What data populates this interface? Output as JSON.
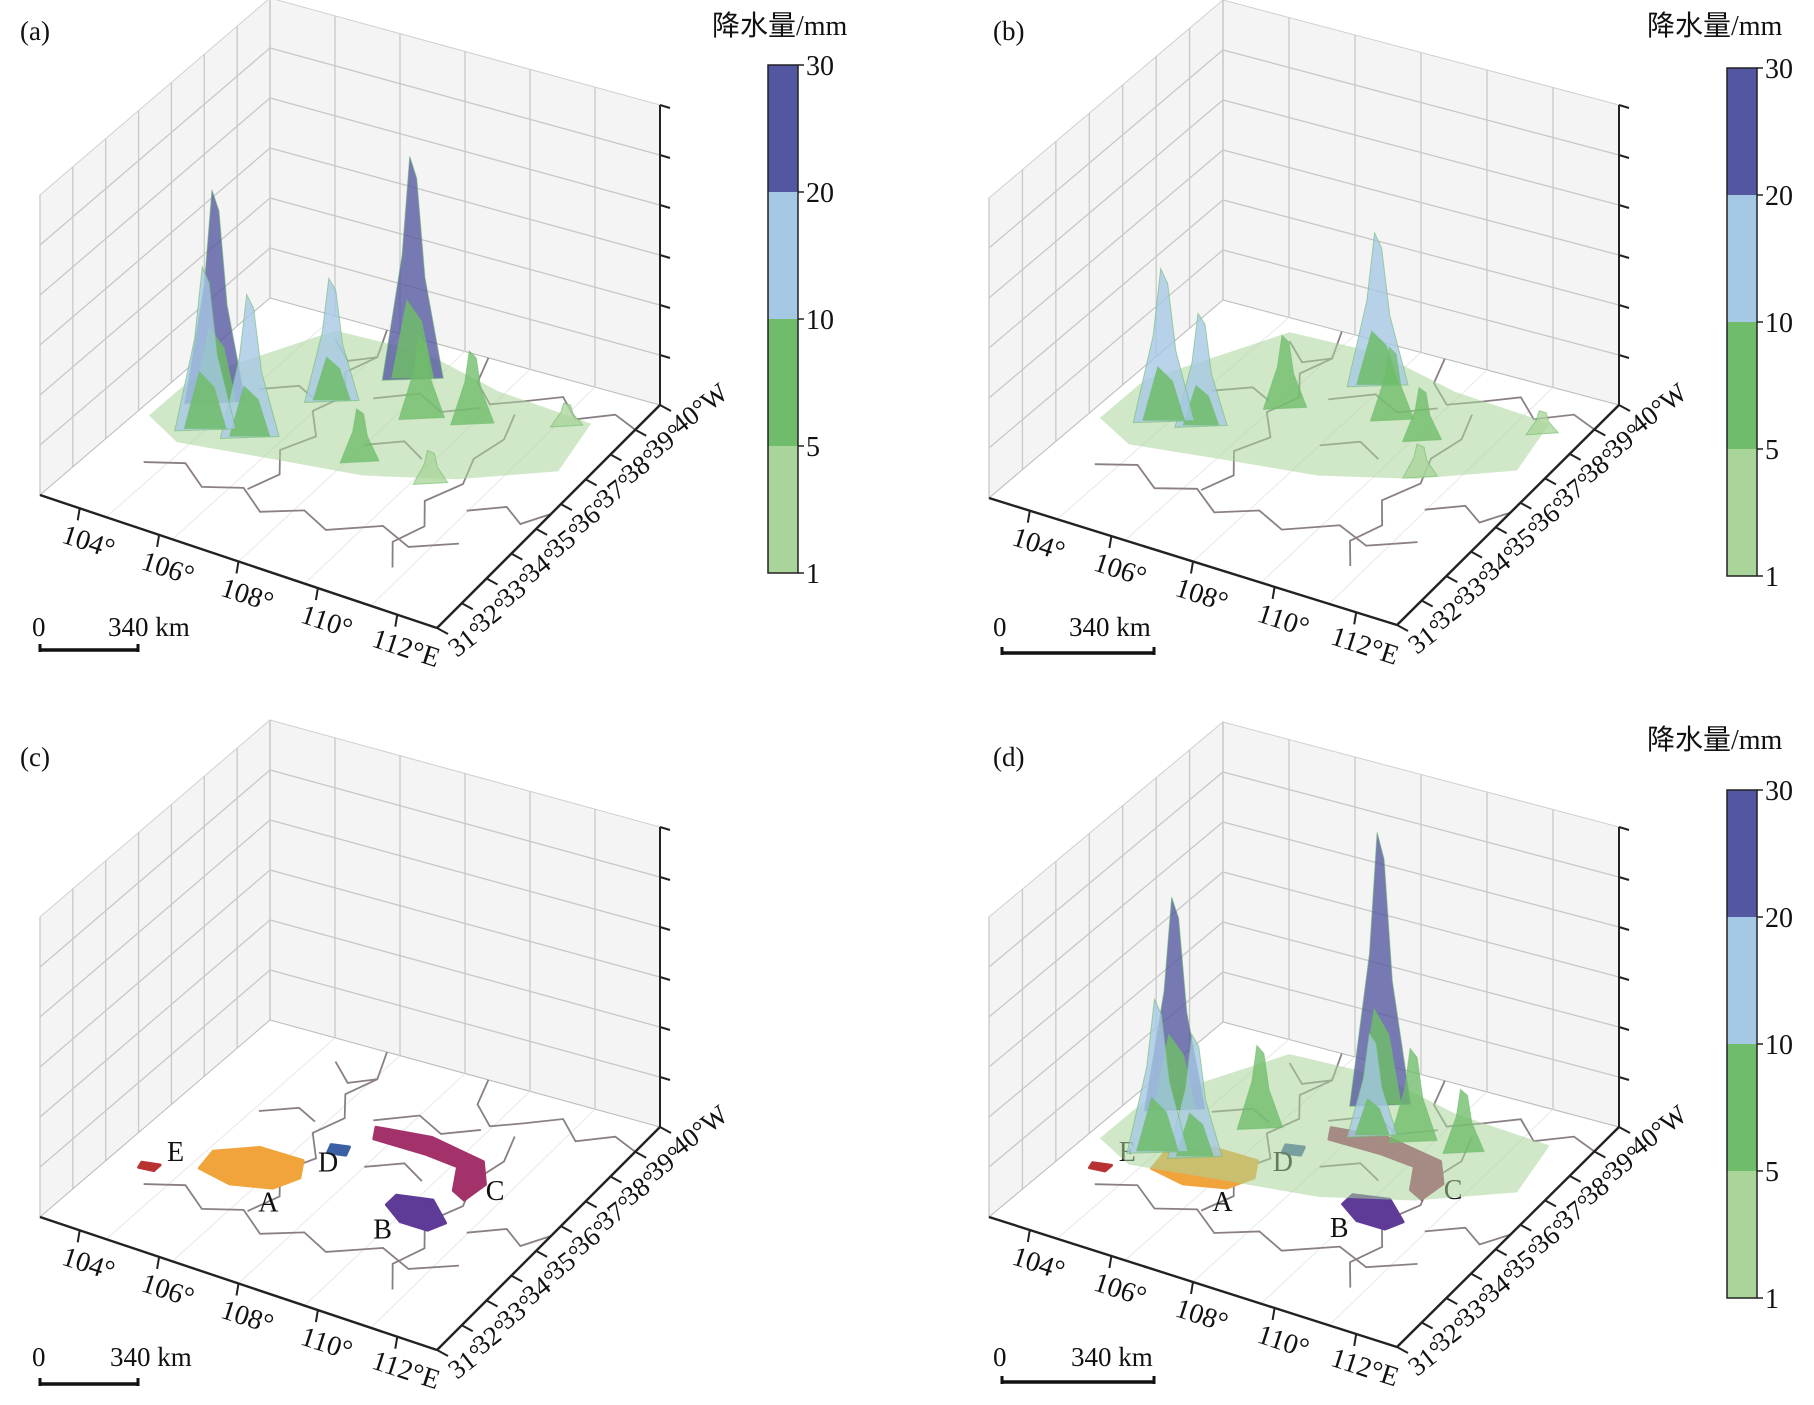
{
  "figure": {
    "colorbar": {
      "title": "降水量/mm",
      "ticks": [
        "1",
        "5",
        "10",
        "20",
        "30"
      ],
      "colors": [
        "#a9d59a",
        "#6fbc6a",
        "#a5c8e4",
        "#5356a0"
      ]
    },
    "x_ticks": [
      "104°",
      "106°",
      "108°",
      "110°",
      "112°E"
    ],
    "y_ticks": [
      "31°",
      "32°",
      "33°",
      "34°",
      "35°",
      "36°",
      "37°",
      "38°",
      "39°",
      "40°W"
    ],
    "scale_bar": {
      "zero": "0",
      "length": "340 km"
    },
    "region_colors": {
      "A": "#f0a43b",
      "B": "#5e3b96",
      "C": "#a3326a",
      "D": "#3b5fa3",
      "E": "#b83232"
    }
  },
  "chart_data": [
    {
      "type": "surface3d",
      "panel_label": "(a)",
      "xlabel": "",
      "ylabel": "",
      "zlabel": "",
      "x_range": [
        103,
        113
      ],
      "y_range": [
        31,
        40
      ],
      "z_range": [
        0,
        30
      ],
      "colorbar_title": "降水量/mm",
      "peaks": [
        {
          "lon": 104.2,
          "lat": 36.0,
          "value": 21
        },
        {
          "lon": 104.6,
          "lat": 35.0,
          "value": 16
        },
        {
          "lon": 105.6,
          "lat": 35.2,
          "value": 14
        },
        {
          "lon": 106.4,
          "lat": 37.2,
          "value": 12
        },
        {
          "lon": 107.5,
          "lat": 38.7,
          "value": 22
        },
        {
          "lon": 108.5,
          "lat": 37.5,
          "value": 8
        },
        {
          "lon": 109.6,
          "lat": 37.8,
          "value": 7
        },
        {
          "lon": 108.2,
          "lat": 35.5,
          "value": 5
        },
        {
          "lon": 110.0,
          "lat": 35.5,
          "value": 3
        },
        {
          "lon": 111.5,
          "lat": 38.6,
          "value": 2
        }
      ]
    },
    {
      "type": "surface3d",
      "panel_label": "(b)",
      "xlabel": "",
      "ylabel": "",
      "zlabel": "",
      "x_range": [
        103,
        113
      ],
      "y_range": [
        31,
        40
      ],
      "z_range": [
        0,
        30
      ],
      "colorbar_title": "降水量/mm",
      "peaks": [
        {
          "lon": 104.5,
          "lat": 35.4,
          "value": 15
        },
        {
          "lon": 105.3,
          "lat": 35.6,
          "value": 11
        },
        {
          "lon": 106.5,
          "lat": 37.0,
          "value": 7
        },
        {
          "lon": 107.8,
          "lat": 38.6,
          "value": 15
        },
        {
          "lon": 108.8,
          "lat": 37.6,
          "value": 7
        },
        {
          "lon": 109.8,
          "lat": 37.2,
          "value": 5
        },
        {
          "lon": 110.5,
          "lat": 36.0,
          "value": 3
        },
        {
          "lon": 112.0,
          "lat": 38.5,
          "value": 2
        }
      ]
    },
    {
      "type": "region_map3d",
      "panel_label": "(c)",
      "xlabel": "",
      "ylabel": "",
      "zlabel": "",
      "x_range": [
        103,
        113
      ],
      "y_range": [
        31,
        40
      ],
      "regions": [
        {
          "label": "A",
          "color": "#f0a43b"
        },
        {
          "label": "B",
          "color": "#5e3b96"
        },
        {
          "label": "C",
          "color": "#a3326a"
        },
        {
          "label": "D",
          "color": "#3b5fa3"
        },
        {
          "label": "E",
          "color": "#b83232"
        }
      ]
    },
    {
      "type": "surface3d",
      "panel_label": "(d)",
      "xlabel": "",
      "ylabel": "",
      "zlabel": "",
      "x_range": [
        103,
        113
      ],
      "y_range": [
        31,
        40
      ],
      "z_range": [
        0,
        30
      ],
      "colorbar_title": "降水量/mm",
      "regions": [
        {
          "label": "A",
          "color": "#f0a43b"
        },
        {
          "label": "B",
          "color": "#5e3b96"
        },
        {
          "label": "C",
          "color": "#a3326a"
        },
        {
          "label": "D",
          "color": "#3b5fa3"
        },
        {
          "label": "E",
          "color": "#b83232"
        }
      ],
      "peaks": [
        {
          "lon": 104.0,
          "lat": 36.6,
          "value": 21
        },
        {
          "lon": 104.6,
          "lat": 35.0,
          "value": 15
        },
        {
          "lon": 105.4,
          "lat": 35.2,
          "value": 12
        },
        {
          "lon": 106.0,
          "lat": 36.8,
          "value": 8
        },
        {
          "lon": 107.8,
          "lat": 38.7,
          "value": 27
        },
        {
          "lon": 108.3,
          "lat": 37.6,
          "value": 10
        },
        {
          "lon": 109.2,
          "lat": 37.8,
          "value": 9
        },
        {
          "lon": 110.4,
          "lat": 37.9,
          "value": 6
        }
      ]
    }
  ]
}
